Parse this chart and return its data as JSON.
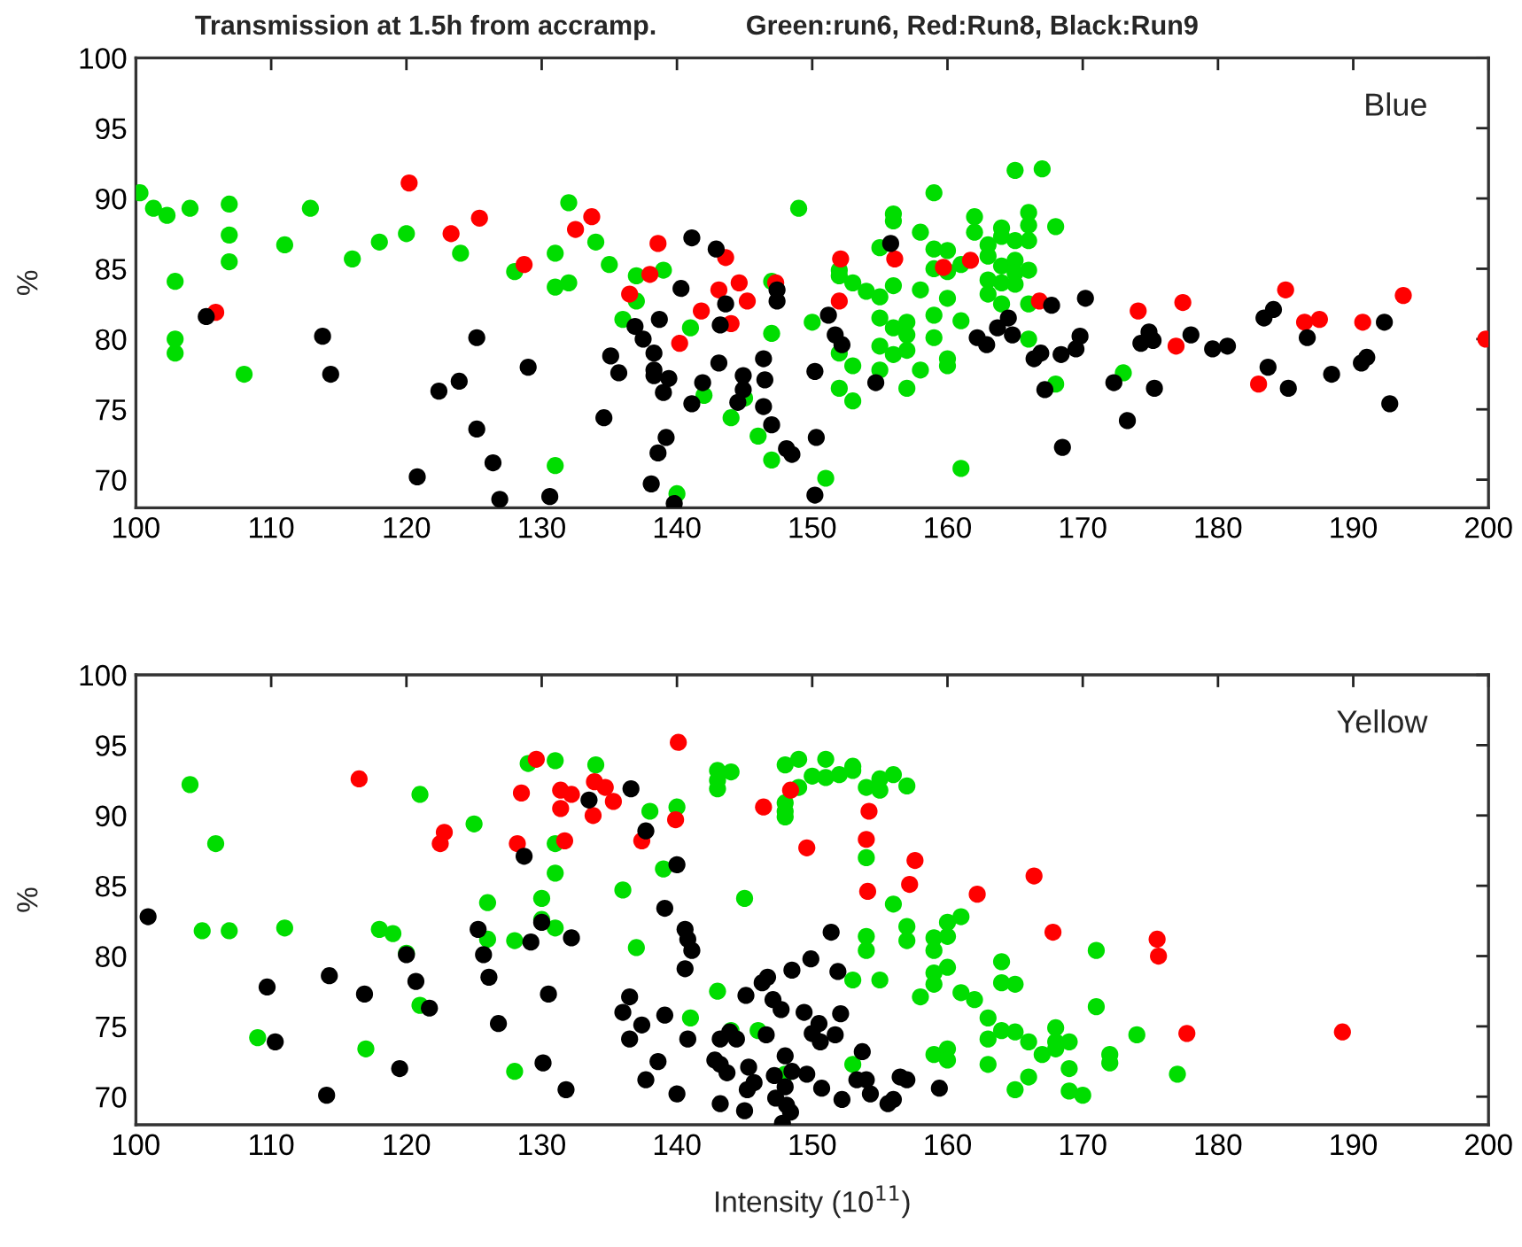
{
  "chart_data": [
    {
      "type": "scatter",
      "title": "Transmission at 1.5h from accramp.",
      "subtitle": "Green:run6, Red:Run8, Black:Run9",
      "ylabel": "%",
      "annotations": [
        "Blue"
      ],
      "xlim": [
        100,
        200
      ],
      "ylim": [
        68,
        100
      ],
      "xticks": [
        100,
        110,
        120,
        130,
        140,
        150,
        160,
        170,
        180,
        190,
        200
      ],
      "yticks": [
        70,
        75,
        80,
        85,
        90,
        95,
        100
      ],
      "grid": false,
      "legend": false,
      "marker": "circle",
      "series": [
        {
          "color": "#00dd00",
          "x": [
            100.3,
            101.3,
            102.3,
            104.0,
            106.9,
            106.9,
            106.9,
            102.9,
            102.9,
            102.9,
            108.0,
            111.0,
            112.9,
            116.0,
            118.0,
            120.0,
            124.0,
            128.0,
            131.0,
            131.0,
            132.0,
            132.0,
            134.0,
            135.0,
            137.0,
            139.0,
            137.0,
            136.0,
            131.0,
            141.0,
            147.0,
            147.0,
            142.0,
            144.0,
            145.0,
            146.0,
            147.0,
            140.0,
            149.0,
            150.0,
            151.0,
            152.0,
            152.0,
            153.0,
            154.0,
            155.0,
            156.0,
            156.0,
            156.0,
            155.0,
            155.0,
            156.0,
            157.0,
            157.0,
            156.0,
            155.0,
            155.0,
            157.0,
            157.0,
            153.0,
            152.0,
            152.0,
            153.0,
            158.0,
            158.0,
            158.0,
            159.0,
            159.0,
            159.0,
            159.0,
            159.0,
            160.0,
            160.0,
            160.0,
            160.0,
            160.0,
            161.0,
            161.0,
            161.0,
            162.0,
            162.0,
            163.0,
            163.0,
            163.0,
            163.0,
            164.0,
            164.0,
            164.0,
            164.0,
            164.0,
            165.0,
            165.0,
            165.0,
            165.0,
            165.0,
            166.0,
            166.0,
            166.0,
            166.0,
            166.0,
            166.0,
            167.0,
            168.0,
            168.0,
            173.0
          ],
          "values": [
            90.4,
            89.3,
            88.8,
            89.3,
            89.6,
            87.4,
            85.5,
            84.1,
            80.0,
            79.0,
            77.5,
            86.7,
            89.3,
            85.7,
            86.9,
            87.5,
            86.1,
            84.8,
            86.1,
            83.7,
            84.0,
            89.7,
            86.9,
            85.3,
            84.5,
            84.9,
            82.7,
            81.4,
            71.0,
            80.8,
            84.1,
            80.4,
            76.0,
            74.4,
            75.8,
            73.1,
            71.4,
            69.0,
            89.3,
            81.2,
            70.1,
            84.9,
            84.5,
            84.0,
            83.4,
            86.5,
            88.9,
            88.4,
            83.8,
            83.0,
            81.5,
            80.8,
            81.2,
            80.3,
            78.9,
            79.5,
            77.8,
            79.2,
            76.5,
            78.1,
            79.0,
            76.5,
            75.6,
            83.5,
            87.6,
            77.8,
            90.4,
            86.4,
            85.0,
            81.7,
            80.1,
            86.3,
            84.8,
            82.9,
            78.6,
            78.1,
            85.3,
            81.3,
            70.8,
            88.7,
            87.6,
            86.7,
            85.9,
            84.2,
            83.2,
            87.9,
            87.3,
            85.2,
            84.0,
            82.5,
            92.0,
            87.0,
            85.6,
            84.7,
            83.9,
            89.0,
            88.1,
            87.0,
            84.9,
            82.5,
            80.0,
            92.1,
            88.0,
            76.8,
            77.6
          ]
        },
        {
          "color": "#ff0000",
          "x": [
            105.9,
            120.2,
            123.3,
            125.4,
            128.7,
            132.5,
            133.7,
            138.6,
            138.0,
            136.5,
            140.2,
            141.8,
            143.1,
            143.6,
            144.6,
            145.2,
            144.0,
            147.3,
            152.1,
            152.0,
            156.1,
            159.7,
            161.7,
            166.8,
            174.1,
            177.4,
            176.9,
            183.0,
            185.0,
            186.4,
            187.5,
            190.7,
            193.7,
            199.8
          ],
          "values": [
            81.9,
            91.1,
            87.5,
            88.6,
            85.3,
            87.8,
            88.7,
            86.8,
            84.6,
            83.2,
            79.7,
            82.0,
            83.5,
            85.8,
            84.0,
            82.7,
            81.1,
            84.0,
            85.7,
            82.7,
            85.7,
            85.1,
            85.6,
            82.7,
            82.0,
            82.6,
            79.5,
            76.8,
            83.5,
            81.2,
            81.4,
            81.2,
            83.1,
            80.0
          ]
        },
        {
          "color": "#000000",
          "x": [
            105.2,
            113.8,
            114.4,
            122.4,
            123.9,
            125.2,
            125.2,
            126.4,
            126.9,
            120.8,
            129.0,
            130.6,
            134.6,
            135.1,
            135.7,
            136.9,
            137.5,
            138.3,
            138.3,
            138.3,
            139.4,
            139.0,
            138.7,
            139.2,
            138.6,
            138.1,
            139.8,
            141.1,
            142.9,
            140.3,
            143.6,
            143.2,
            143.1,
            141.9,
            141.1,
            144.9,
            144.9,
            144.5,
            146.4,
            146.5,
            146.4,
            147.0,
            147.4,
            147.4,
            148.1,
            148.5,
            150.2,
            150.3,
            150.2,
            151.2,
            151.7,
            152.2,
            154.7,
            155.8,
            162.2,
            162.9,
            163.7,
            164.5,
            164.8,
            166.4,
            166.9,
            167.2,
            167.7,
            168.4,
            168.5,
            169.5,
            169.8,
            170.2,
            172.3,
            173.3,
            174.3,
            174.9,
            175.2,
            175.3,
            178.0,
            179.6,
            180.7,
            183.4,
            184.1,
            183.7,
            185.2,
            186.6,
            188.4,
            190.6,
            191.0,
            192.3,
            192.7
          ],
          "values": [
            81.6,
            80.2,
            77.5,
            76.3,
            77.0,
            80.1,
            73.6,
            71.2,
            68.6,
            70.2,
            78.0,
            68.8,
            74.4,
            78.8,
            77.6,
            80.9,
            80.0,
            79.0,
            77.8,
            77.4,
            77.2,
            76.2,
            81.4,
            73.0,
            71.9,
            69.7,
            68.3,
            87.2,
            86.4,
            83.6,
            82.5,
            81.0,
            78.3,
            76.9,
            75.4,
            77.4,
            76.4,
            75.5,
            78.6,
            77.1,
            75.2,
            73.9,
            83.5,
            82.7,
            72.2,
            71.8,
            77.7,
            73.0,
            68.9,
            81.7,
            80.3,
            79.6,
            76.9,
            86.8,
            80.1,
            79.6,
            80.8,
            81.5,
            80.3,
            78.6,
            79.0,
            76.4,
            82.4,
            78.9,
            72.3,
            79.3,
            80.2,
            82.9,
            76.9,
            74.2,
            79.7,
            80.5,
            79.9,
            76.5,
            80.3,
            79.3,
            79.5,
            81.5,
            82.1,
            78.0,
            76.5,
            80.1,
            77.5,
            78.3,
            78.7,
            81.2,
            75.4
          ]
        }
      ]
    },
    {
      "type": "scatter",
      "xlabel": "Intensity (10$^{11}$)",
      "ylabel": "%",
      "annotations": [
        "Yellow"
      ],
      "xlim": [
        100,
        200
      ],
      "ylim": [
        68,
        100
      ],
      "xticks": [
        100,
        110,
        120,
        130,
        140,
        150,
        160,
        170,
        180,
        190,
        200
      ],
      "yticks": [
        70,
        75,
        80,
        85,
        90,
        95,
        100
      ],
      "grid": false,
      "legend": false,
      "marker": "circle",
      "series": [
        {
          "color": "#00dd00",
          "x": [
            104.0,
            104.9,
            105.9,
            106.9,
            111.0,
            109.0,
            117.0,
            118.0,
            119.0,
            120.0,
            121.0,
            121.0,
            125.0,
            126.0,
            126.0,
            128.0,
            128.0,
            129.0,
            131.0,
            131.0,
            131.0,
            130.0,
            131.0,
            130.0,
            134.0,
            136.0,
            137.0,
            138.0,
            139.0,
            140.0,
            143.0,
            143.0,
            143.0,
            144.0,
            145.0,
            143.0,
            141.0,
            144.0,
            146.0,
            148.0,
            149.0,
            148.0,
            148.0,
            148.0,
            149.0,
            150.0,
            151.0,
            151.0,
            148.0,
            152.0,
            153.0,
            153.0,
            154.0,
            155.0,
            155.0,
            156.0,
            157.0,
            154.0,
            156.0,
            157.0,
            157.0,
            154.0,
            154.0,
            153.0,
            155.0,
            153.0,
            158.0,
            159.0,
            159.0,
            159.0,
            159.0,
            160.0,
            160.0,
            160.0,
            161.0,
            161.0,
            162.0,
            163.0,
            163.0,
            163.0,
            164.0,
            164.0,
            165.0,
            164.0,
            165.0,
            166.0,
            167.0,
            168.0,
            168.0,
            168.0,
            169.0,
            169.0,
            165.0,
            166.0,
            169.0,
            170.0,
            171.0,
            171.0,
            172.0,
            172.0,
            174.0,
            177.0,
            159.0,
            160.0,
            160.0
          ],
          "values": [
            92.2,
            81.8,
            88.0,
            81.8,
            82.0,
            74.2,
            73.4,
            81.9,
            81.6,
            80.2,
            91.5,
            76.5,
            89.4,
            83.8,
            81.2,
            81.1,
            71.8,
            93.7,
            93.9,
            88.0,
            85.9,
            84.1,
            82.0,
            82.6,
            93.6,
            84.7,
            80.6,
            90.3,
            86.2,
            90.6,
            93.2,
            92.5,
            91.9,
            93.1,
            84.1,
            77.5,
            75.6,
            74.7,
            74.7,
            93.6,
            94.0,
            90.9,
            90.3,
            89.9,
            92.0,
            92.8,
            94.0,
            92.7,
            71.6,
            92.9,
            93.5,
            93.2,
            92.0,
            92.6,
            91.8,
            92.9,
            92.1,
            87.0,
            83.7,
            82.1,
            81.1,
            81.4,
            80.4,
            78.3,
            78.3,
            72.3,
            77.1,
            81.3,
            80.4,
            78.8,
            78.0,
            82.4,
            81.4,
            79.2,
            82.8,
            77.4,
            76.9,
            75.6,
            74.1,
            72.3,
            79.6,
            78.1,
            78.0,
            74.7,
            74.6,
            73.9,
            73.0,
            74.9,
            73.9,
            73.4,
            73.9,
            72.0,
            70.5,
            71.4,
            70.4,
            70.1,
            80.4,
            76.4,
            73.0,
            72.4,
            74.4,
            71.6,
            73.0,
            73.4,
            72.6
          ]
        },
        {
          "color": "#ff0000",
          "x": [
            116.5,
            122.5,
            122.8,
            128.2,
            128.5,
            129.6,
            131.4,
            131.4,
            131.9,
            132.2,
            131.7,
            133.9,
            134.7,
            135.3,
            133.8,
            137.4,
            140.1,
            139.9,
            146.4,
            148.4,
            149.6,
            154.2,
            154.0,
            157.6,
            154.1,
            157.2,
            162.2,
            166.4,
            167.8,
            175.5,
            175.6,
            177.7,
            189.2
          ],
          "values": [
            92.6,
            88.0,
            88.8,
            88.0,
            91.6,
            94.0,
            91.8,
            90.5,
            null,
            91.5,
            88.2,
            92.4,
            92.0,
            91.0,
            90.0,
            88.2,
            95.2,
            89.7,
            90.6,
            91.8,
            87.7,
            90.3,
            88.3,
            86.8,
            84.6,
            85.1,
            84.4,
            85.7,
            81.7,
            81.2,
            80.0,
            74.5,
            74.6
          ]
        },
        {
          "color": "#000000",
          "x": [
            100.9,
            109.7,
            110.3,
            114.3,
            114.1,
            116.9,
            119.5,
            120.0,
            120.7,
            121.7,
            125.3,
            125.7,
            126.1,
            126.8,
            128.7,
            129.2,
            130.0,
            130.5,
            130.1,
            131.8,
            132.2,
            133.5,
            136.6,
            137.7,
            140.0,
            139.1,
            140.6,
            140.8,
            141.1,
            140.6,
            136.5,
            136.0,
            137.4,
            139.1,
            136.5,
            140.8,
            138.6,
            137.7,
            140.0,
            142.8,
            143.2,
            143.2,
            143.9,
            144.4,
            143.7,
            143.2,
            145.0,
            145.2,
            145.7,
            145.3,
            145.1,
            146.3,
            146.7,
            147.1,
            146.6,
            147.7,
            147.2,
            148.0,
            148.5,
            147.3,
            148.0,
            148.1,
            148.4,
            147.8,
            148.5,
            149.4,
            149.6,
            149.9,
            150.5,
            150.0,
            150.6,
            150.7,
            151.4,
            151.9,
            152.1,
            151.7,
            152.2,
            153.3,
            154.0,
            153.7,
            154.3,
            155.6,
            156.0,
            156.5,
            157.0,
            159.4
          ],
          "values": [
            82.8,
            77.8,
            73.9,
            78.6,
            70.1,
            77.3,
            72.0,
            80.1,
            78.2,
            76.3,
            81.9,
            80.1,
            78.5,
            75.2,
            87.1,
            81.0,
            82.4,
            77.3,
            72.4,
            70.5,
            81.3,
            91.1,
            91.9,
            88.9,
            86.5,
            83.4,
            81.9,
            81.2,
            80.4,
            79.1,
            77.1,
            76.0,
            75.1,
            75.8,
            74.1,
            74.1,
            72.5,
            71.2,
            70.2,
            72.6,
            72.3,
            74.1,
            74.6,
            74.1,
            71.7,
            69.5,
            69.0,
            70.5,
            71.0,
            72.1,
            77.2,
            78.1,
            78.5,
            76.9,
            74.4,
            76.2,
            71.5,
            72.9,
            71.8,
            69.9,
            70.7,
            69.4,
            68.9,
            68.1,
            79.0,
            76.0,
            71.6,
            79.8,
            75.2,
            74.5,
            73.9,
            70.6,
            81.7,
            78.9,
            75.9,
            74.4,
            69.8,
            71.2,
            71.2,
            73.2,
            70.2,
            69.5,
            69.8,
            71.4,
            71.2,
            70.6
          ]
        }
      ]
    }
  ]
}
